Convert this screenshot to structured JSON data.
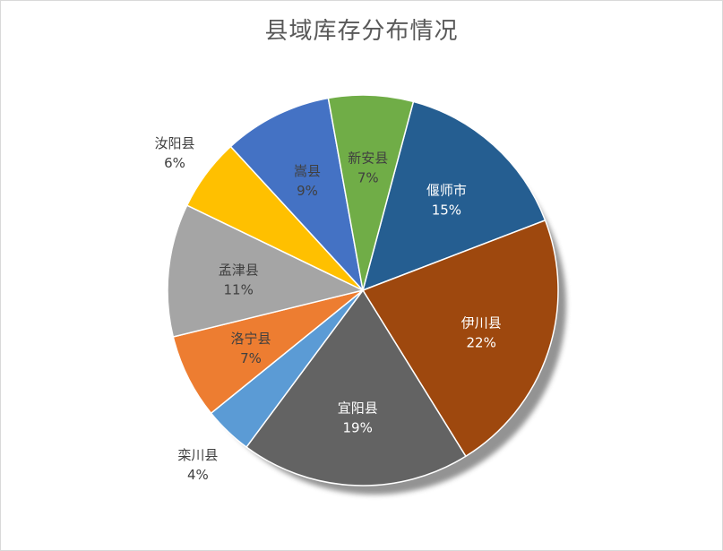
{
  "chart_data": {
    "type": "pie",
    "title": "县域库存分布情况",
    "categories": [
      "偃师市",
      "伊川县",
      "宜阳县",
      "栾川县",
      "洛宁县",
      "孟津县",
      "汝阳县",
      "嵩县",
      "新安县"
    ],
    "values": [
      15,
      22,
      19,
      4,
      7,
      11,
      6,
      9,
      7
    ],
    "value_labels": [
      "15%",
      "22%",
      "19%",
      "4%",
      "7%",
      "11%",
      "6%",
      "9%",
      "7%"
    ],
    "colors": [
      "#255e91",
      "#9e480e",
      "#636363",
      "#5b9bd5",
      "#ed7d31",
      "#a5a5a5",
      "#ffc000",
      "#4472c4",
      "#70ad47"
    ],
    "legend": "none",
    "start_angle_deg": 15
  }
}
